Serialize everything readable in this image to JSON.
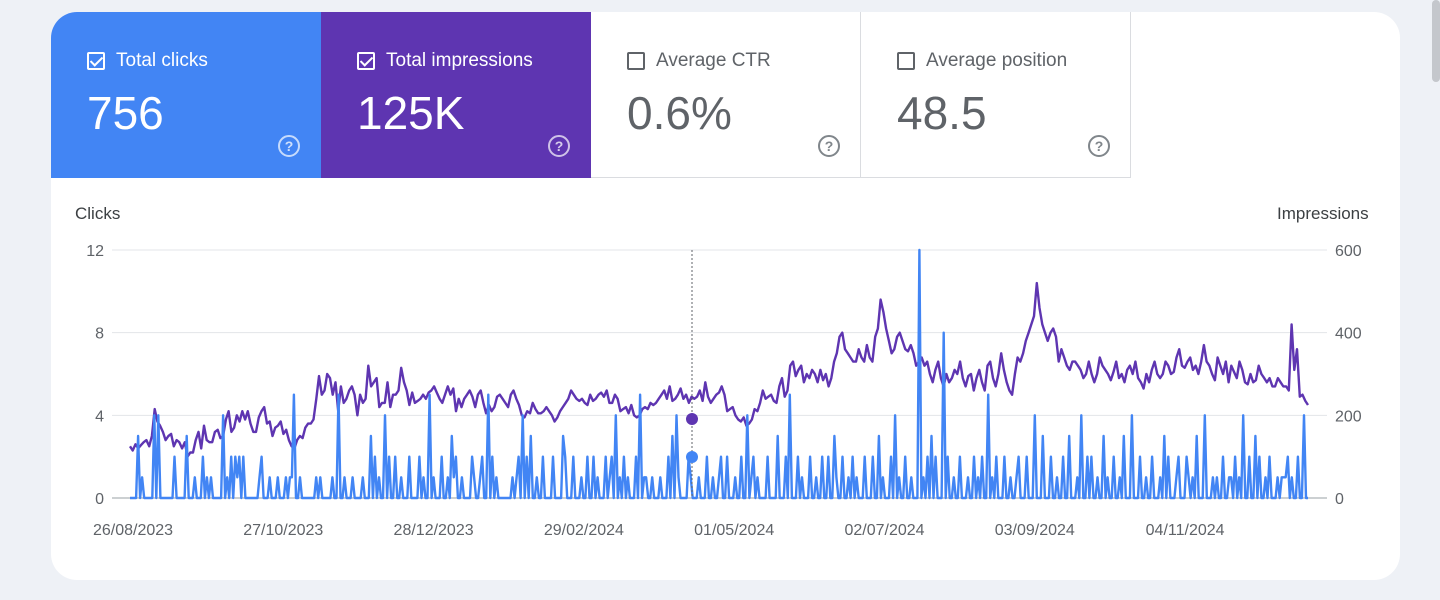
{
  "metrics": [
    {
      "label": "Total clicks",
      "value": "756",
      "checked": true,
      "color": "#4285f4"
    },
    {
      "label": "Total impressions",
      "value": "125K",
      "checked": true,
      "color": "#5e35b1"
    },
    {
      "label": "Average CTR",
      "value": "0.6%",
      "checked": false
    },
    {
      "label": "Average position",
      "value": "48.5",
      "checked": false
    }
  ],
  "help_glyph": "?",
  "chart_data": {
    "type": "line",
    "y_left_label": "Clicks",
    "y_right_label": "Impressions",
    "y_left_ticks": [
      "12",
      "8",
      "4",
      "0"
    ],
    "y_right_ticks": [
      "600",
      "400",
      "200",
      "0"
    ],
    "y_left_range": [
      0,
      12
    ],
    "y_right_range": [
      0,
      600
    ],
    "x_tick_labels": [
      "26/08/2023",
      "27/10/2023",
      "28/12/2023",
      "29/02/2024",
      "01/05/2024",
      "02/07/2024",
      "03/09/2024",
      "04/11/2024"
    ],
    "grid": true,
    "hover_marker_date_index": 187,
    "series": [
      {
        "name": "Impressions",
        "axis": "right",
        "color": "#5e35b1",
        "values": [
          125,
          115,
          130,
          120,
          128,
          135,
          140,
          125,
          150,
          215,
          185,
          175,
          160,
          140,
          150,
          155,
          125,
          140,
          135,
          120,
          135,
          100,
          110,
          110,
          140,
          160,
          120,
          175,
          140,
          135,
          135,
          160,
          165,
          145,
          150,
          190,
          210,
          160,
          170,
          200,
          185,
          210,
          190,
          210,
          180,
          160,
          160,
          195,
          210,
          220,
          180,
          185,
          150,
          170,
          175,
          185,
          155,
          165,
          140,
          125,
          120,
          140,
          150,
          145,
          170,
          180,
          180,
          190,
          240,
          295,
          250,
          260,
          300,
          290,
          250,
          280,
          210,
          270,
          230,
          240,
          260,
          270,
          250,
          200,
          250,
          230,
          240,
          320,
          270,
          280,
          290,
          220,
          230,
          230,
          280,
          220,
          250,
          250,
          260,
          315,
          280,
          260,
          225,
          255,
          230,
          235,
          240,
          250,
          240,
          255,
          260,
          270,
          255,
          240,
          230,
          250,
          270,
          250,
          265,
          210,
          240,
          220,
          240,
          250,
          260,
          245,
          220,
          250,
          260,
          230,
          205,
          225,
          210,
          220,
          245,
          250,
          240,
          230,
          220,
          250,
          260,
          240,
          225,
          200,
          195,
          210,
          205,
          230,
          215,
          205,
          205,
          210,
          220,
          210,
          200,
          185,
          195,
          210,
          220,
          230,
          240,
          260,
          250,
          240,
          235,
          240,
          230,
          225,
          250,
          235,
          240,
          250,
          255,
          245,
          260,
          230,
          230,
          250,
          240,
          210,
          215,
          220,
          205,
          225,
          200,
          195,
          200,
          215,
          220,
          215,
          230,
          225,
          230,
          240,
          250,
          260,
          240,
          270,
          235,
          240,
          250,
          265,
          240,
          250,
          230,
          245,
          240,
          245,
          260,
          235,
          280,
          245,
          230,
          240,
          250,
          255,
          270,
          250,
          210,
          215,
          220,
          200,
          190,
          185,
          195,
          175,
          180,
          190,
          215,
          210,
          230,
          260,
          240,
          245,
          250,
          235,
          230,
          270,
          290,
          245,
          260,
          320,
          330,
          295,
          310,
          320,
          280,
          300,
          290,
          310,
          300,
          280,
          310,
          285,
          300,
          270,
          290,
          330,
          350,
          390,
          400,
          360,
          350,
          340,
          330,
          330,
          360,
          340,
          330,
          370,
          340,
          330,
          390,
          410,
          480,
          450,
          410,
          380,
          350,
          360,
          390,
          400,
          380,
          360,
          355,
          370,
          350,
          320,
          330,
          340,
          320,
          330,
          300,
          280,
          310,
          330,
          290,
          270,
          300,
          280,
          290,
          310,
          300,
          330,
          290,
          270,
          295,
          300,
          260,
          290,
          310,
          280,
          260,
          320,
          330,
          290,
          270,
          300,
          350,
          310,
          280,
          260,
          250,
          300,
          340,
          330,
          350,
          380,
          400,
          420,
          440,
          520,
          460,
          420,
          400,
          380,
          400,
          410,
          390,
          330,
          360,
          340,
          320,
          310,
          330,
          330,
          320,
          310,
          290,
          300,
          330,
          300,
          280,
          300,
          340,
          320,
          310,
          300,
          285,
          305,
          330,
          290,
          300,
          280,
          310,
          320,
          300,
          330,
          290,
          280,
          265,
          300,
          280,
          310,
          330,
          300,
          290,
          300,
          330,
          320,
          300,
          305,
          340,
          360,
          320,
          315,
          330,
          340,
          310,
          320,
          300,
          330,
          370,
          330,
          320,
          300,
          285,
          340,
          320,
          300,
          330,
          280,
          320,
          305,
          290,
          330,
          310,
          280,
          275,
          300,
          280,
          285,
          320,
          300,
          290,
          280,
          290,
          270,
          270,
          290,
          280,
          270,
          270,
          260,
          420,
          310,
          360,
          245,
          250,
          235,
          225
        ]
      },
      {
        "name": "Clicks",
        "axis": "left",
        "color": "#4285f4",
        "values": [
          0,
          0,
          0,
          0,
          3,
          0,
          1,
          0,
          0,
          0,
          0,
          0,
          4,
          0,
          4,
          0,
          0,
          0,
          0,
          0,
          0,
          0,
          2,
          0,
          0,
          0,
          0,
          0,
          3,
          0,
          0,
          0,
          1,
          0,
          0,
          0,
          2,
          0,
          1,
          0,
          1,
          0,
          0,
          0,
          0,
          0,
          4,
          0,
          1,
          0,
          2,
          0,
          2,
          1,
          2,
          0,
          2,
          0,
          0,
          0,
          0,
          0,
          0,
          0,
          1,
          2,
          0,
          0,
          0,
          1,
          0,
          0,
          0,
          1,
          0,
          0,
          0,
          1,
          0,
          1,
          1,
          5,
          0,
          0,
          1,
          0,
          0,
          0,
          0,
          0,
          0,
          0,
          1,
          0,
          1,
          0,
          0,
          0,
          0,
          0,
          1,
          0,
          0,
          5,
          0,
          0,
          1,
          0,
          0,
          0,
          1,
          0,
          0,
          0,
          0,
          1,
          0,
          0,
          0,
          3,
          0,
          2,
          0,
          1,
          0,
          0,
          4,
          0,
          2,
          0,
          0,
          2,
          0,
          0,
          1,
          0,
          0,
          0,
          2,
          0,
          0,
          0,
          0,
          2,
          0,
          1,
          0,
          0,
          5,
          0,
          1,
          0,
          0,
          0,
          2,
          0,
          0,
          1,
          0,
          3,
          1,
          2,
          0,
          0,
          1,
          0,
          0,
          0,
          0,
          2,
          1,
          0,
          0,
          1,
          2,
          0,
          0,
          5,
          0,
          2,
          0,
          1,
          0,
          0,
          0,
          0,
          0,
          0,
          0,
          1,
          0,
          1,
          2,
          0,
          4,
          0,
          2,
          0,
          3,
          0,
          0,
          1,
          0,
          0,
          2,
          0,
          0,
          0,
          0,
          2,
          0,
          0,
          0,
          0,
          3,
          2,
          0,
          0,
          0,
          2,
          0,
          0,
          0,
          1,
          0,
          0,
          2,
          0,
          0,
          2,
          0,
          1,
          0,
          0,
          0,
          2,
          0,
          1,
          2,
          0,
          4,
          0,
          1,
          0,
          2,
          0,
          1,
          0,
          0,
          0,
          2,
          0,
          5,
          0,
          1,
          1,
          0,
          0,
          1,
          0,
          0,
          0,
          1,
          0,
          0,
          0,
          2,
          0,
          3,
          0,
          4,
          1,
          0,
          0,
          0,
          0,
          2,
          1,
          0,
          0,
          0,
          1,
          0,
          0,
          0,
          2,
          0,
          0,
          1,
          0,
          0,
          1,
          2,
          0,
          0,
          2,
          0,
          0,
          0,
          1,
          0,
          0,
          2,
          0,
          0,
          4,
          0,
          1,
          2,
          0,
          1,
          0,
          0,
          0,
          0,
          2,
          0,
          0,
          0,
          0,
          3,
          0,
          0,
          0,
          2,
          0,
          5,
          0,
          0,
          0,
          2,
          0,
          1,
          0,
          0,
          0,
          2,
          0,
          0,
          1,
          0,
          0,
          2,
          0,
          0,
          2,
          0,
          0,
          3,
          1,
          0,
          0,
          2,
          0,
          0,
          1,
          0,
          2,
          0,
          1,
          0,
          0,
          0,
          2,
          0,
          0,
          0,
          2,
          0,
          0,
          3,
          0,
          1,
          0,
          0,
          0,
          2,
          0,
          4,
          0,
          1,
          0,
          0,
          2,
          0,
          0,
          1,
          0,
          0,
          0,
          12,
          0,
          1,
          0,
          2,
          0,
          3,
          0,
          2,
          0,
          0,
          0,
          8,
          0,
          2,
          0,
          0,
          1,
          0,
          0,
          2,
          0,
          0,
          0,
          1,
          0,
          0,
          2,
          0,
          1,
          0,
          2,
          0,
          0,
          5,
          0,
          1,
          0,
          2,
          0,
          0,
          0,
          2,
          0,
          0,
          1,
          0,
          0,
          1,
          2,
          0,
          0,
          0,
          2,
          0,
          0,
          0,
          4,
          0,
          0,
          0,
          3,
          0,
          0,
          0,
          2,
          0,
          0,
          1,
          0,
          0,
          2,
          0,
          0,
          3,
          0,
          0,
          0,
          1,
          0,
          4,
          0,
          0,
          2,
          0,
          2,
          0,
          0,
          1,
          0,
          0,
          3,
          0,
          1,
          0,
          0,
          2,
          0,
          0,
          1,
          0,
          3,
          0,
          0,
          0,
          4,
          0,
          0,
          0,
          2,
          0,
          0,
          1,
          0,
          0,
          2,
          0,
          0,
          0,
          1,
          0,
          3,
          0,
          2,
          0,
          0,
          0,
          1,
          2,
          0,
          0,
          0,
          2,
          1,
          0,
          1,
          0,
          3,
          0,
          0,
          0,
          4,
          0,
          0,
          0,
          1,
          0,
          1,
          0,
          0,
          2,
          0,
          0,
          1,
          1,
          0,
          2,
          0,
          1,
          0,
          4,
          0,
          0,
          2,
          0,
          0,
          3,
          0,
          2,
          0,
          0,
          1,
          0,
          2,
          0,
          0,
          0,
          1,
          0,
          1,
          1,
          1,
          2,
          0,
          1,
          0,
          0,
          2,
          0,
          0,
          4,
          0,
          0
        ]
      }
    ]
  }
}
